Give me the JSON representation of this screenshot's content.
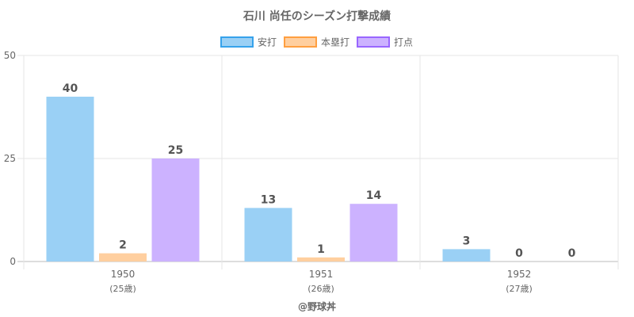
{
  "chart_data": {
    "type": "bar",
    "title": "石川 尚任のシーズン打撃成績",
    "categories": [
      "1950",
      "1951",
      "1952"
    ],
    "category_sublabels": [
      "(25歳)",
      "(26歳)",
      "(27歳)"
    ],
    "ylim": [
      0,
      50
    ],
    "yticks": [
      0,
      25,
      50
    ],
    "grid": true,
    "legend_position": "top",
    "series": [
      {
        "name": "安打",
        "values": [
          40,
          13,
          3
        ],
        "fill": "#9ad0f5",
        "stroke": "#36a2eb"
      },
      {
        "name": "本塁打",
        "values": [
          2,
          1,
          0
        ],
        "fill": "#ffcf9f",
        "stroke": "#ff9f40"
      },
      {
        "name": "打点",
        "values": [
          25,
          14,
          0
        ],
        "fill": "#ccb2ff",
        "stroke": "#9966ff"
      }
    ]
  },
  "footer": "@野球丼"
}
